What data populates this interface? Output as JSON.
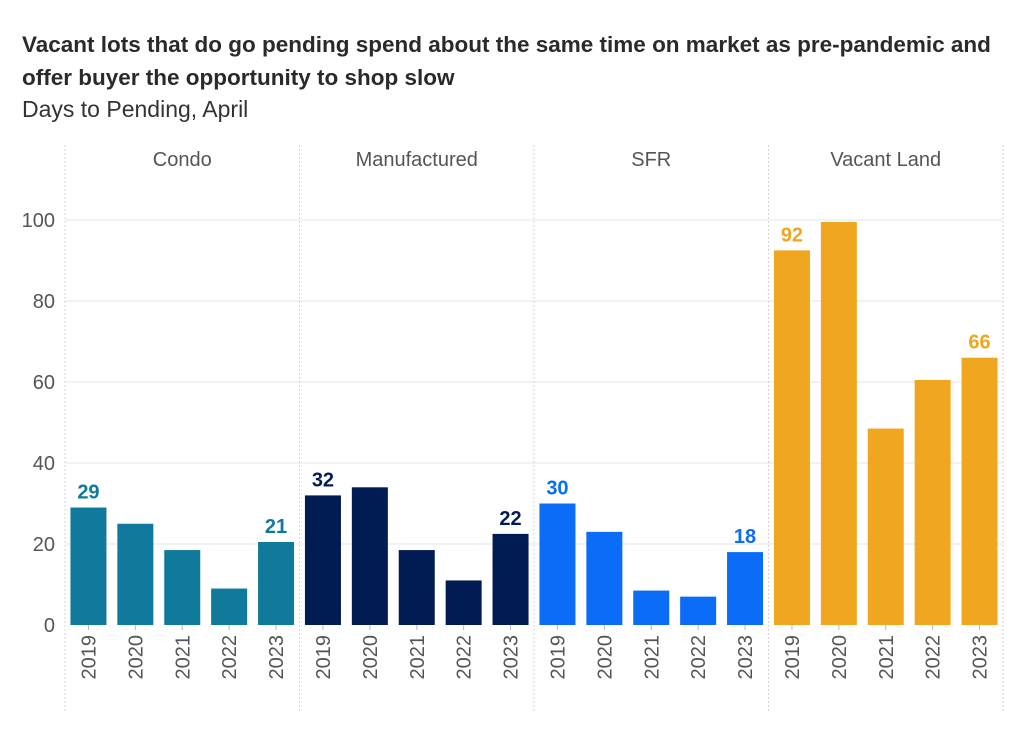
{
  "title": "Vacant lots that do go pending spend about the same time on market as pre-pandemic and offer buyer the opportunity to shop slow",
  "subtitle": "Days to Pending, April",
  "chart_data": {
    "type": "bar",
    "facet_by": "property type",
    "categories": [
      "2019",
      "2020",
      "2021",
      "2022",
      "2023"
    ],
    "ylim": [
      0,
      110
    ],
    "yticks": [
      0,
      20,
      40,
      60,
      80,
      100
    ],
    "grid": true,
    "xlabel": "",
    "ylabel": "",
    "series": [
      {
        "name": "Condo",
        "color": "#0f7a9c",
        "values": [
          29,
          25,
          18.5,
          9,
          20.5
        ],
        "labels": [
          29,
          null,
          null,
          null,
          21
        ]
      },
      {
        "name": "Manufactured",
        "color": "#011c52",
        "values": [
          32,
          34,
          18.5,
          11,
          22.5
        ],
        "labels": [
          32,
          null,
          null,
          null,
          22
        ]
      },
      {
        "name": "SFR",
        "color": "#0a6cf7",
        "values": [
          30,
          23,
          8.5,
          7,
          18
        ],
        "labels": [
          30,
          null,
          null,
          null,
          18
        ]
      },
      {
        "name": "Vacant Land",
        "color": "#f0a71f",
        "values": [
          92.5,
          99.5,
          48.5,
          60.5,
          66
        ],
        "labels": [
          92,
          null,
          null,
          null,
          66
        ]
      }
    ]
  }
}
